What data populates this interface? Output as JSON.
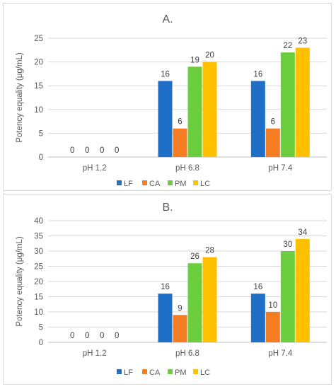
{
  "chart_data": [
    {
      "type": "bar",
      "title": "A.",
      "xlabel": "",
      "ylabel": "Potency equality (μg/mL)",
      "categories": [
        "pH 1.2",
        "pH 6.8",
        "pH 7.4"
      ],
      "series": [
        {
          "name": "LF",
          "color": "#1f6fc6",
          "values": [
            0,
            16,
            16
          ]
        },
        {
          "name": "CA",
          "color": "#f47d24",
          "values": [
            0,
            6,
            6
          ]
        },
        {
          "name": "PM",
          "color": "#6ccd3f",
          "values": [
            0,
            19,
            22
          ]
        },
        {
          "name": "LC",
          "color": "#ffc000",
          "values": [
            0,
            20,
            23
          ]
        }
      ],
      "ylim": [
        0,
        25
      ],
      "yticks": [
        "0",
        "5",
        "10",
        "15",
        "20",
        "25"
      ],
      "grid": true,
      "legend": "bottom"
    },
    {
      "type": "bar",
      "title": "B.",
      "xlabel": "",
      "ylabel": "Potency equality (μg/mL)",
      "categories": [
        "pH 1.2",
        "pH 6.8",
        "pH 7.4"
      ],
      "series": [
        {
          "name": "LF",
          "color": "#1f6fc6",
          "values": [
            0,
            16,
            16
          ]
        },
        {
          "name": "CA",
          "color": "#f47d24",
          "values": [
            0,
            9,
            10
          ]
        },
        {
          "name": "PM",
          "color": "#6ccd3f",
          "values": [
            0,
            26,
            30
          ]
        },
        {
          "name": "LC",
          "color": "#ffc000",
          "values": [
            0,
            28,
            34
          ]
        }
      ],
      "ylim": [
        0,
        40
      ],
      "yticks": [
        "0",
        "5",
        "10",
        "15",
        "20",
        "25",
        "30",
        "35",
        "40"
      ],
      "grid": true,
      "legend": "bottom"
    }
  ]
}
